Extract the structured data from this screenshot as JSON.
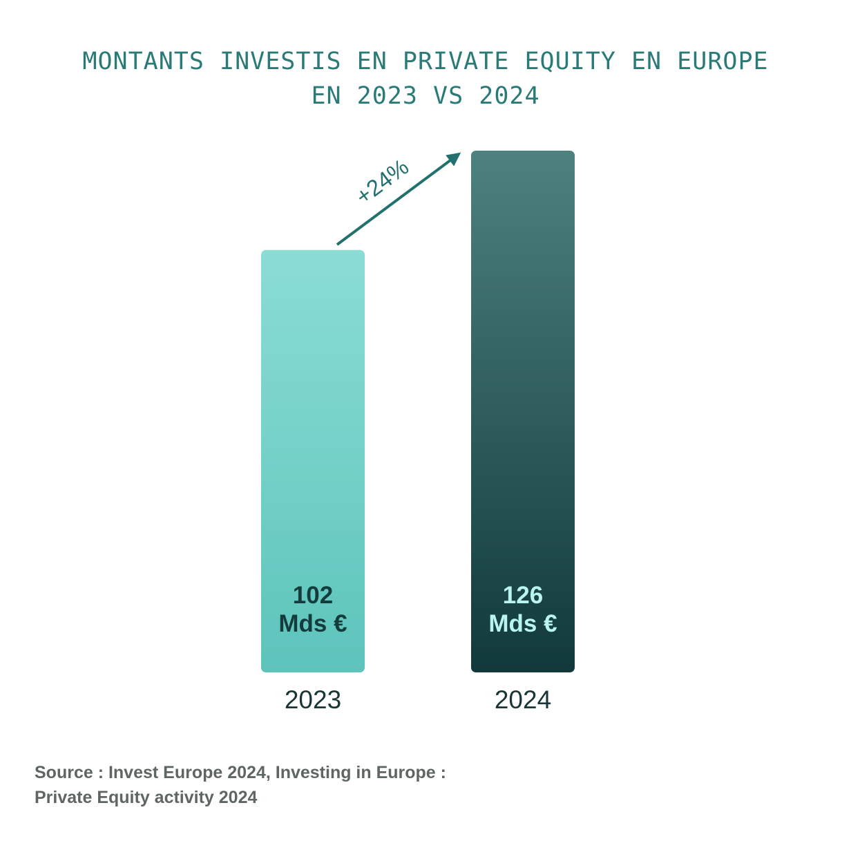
{
  "chart_data": {
    "type": "bar",
    "title": [
      "MONTANTS INVESTIS EN PRIVATE EQUITY EN EUROPE",
      "EN 2023 VS 2024"
    ],
    "categories": [
      "2023",
      "2024"
    ],
    "values": [
      102,
      126
    ],
    "value_labels": [
      [
        "102",
        "Mds €"
      ],
      [
        "126",
        "Mds €"
      ]
    ],
    "unit": "Mds €",
    "annotation": "+24%",
    "colors": {
      "bar_2023_top": "#8addd5",
      "bar_2023_bottom": "#5dc4bb",
      "bar_2024_top": "#4d827e",
      "bar_2024_bottom": "#11393a",
      "label_2023": "#143c3c",
      "label_2024": "#b9f5ee",
      "arrow": "#23716e",
      "axis_text": "#1a3535"
    }
  },
  "source": {
    "line1": "Source : Invest Europe 2024, Investing in Europe :",
    "line2": "Private Equity activity 2024"
  }
}
